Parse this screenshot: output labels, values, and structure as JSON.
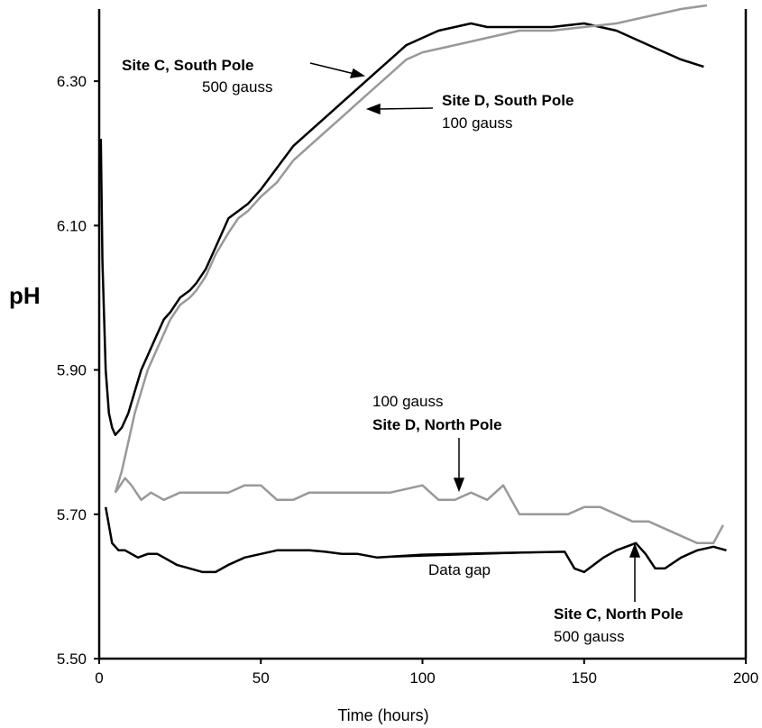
{
  "chart_data": {
    "type": "line",
    "title": "",
    "xlabel": "Time (hours)",
    "ylabel": "pH",
    "xlim": [
      0,
      200
    ],
    "ylim": [
      5.5,
      6.4
    ],
    "x_ticks": [
      "0",
      "50",
      "100",
      "150",
      "200"
    ],
    "y_ticks": [
      "5.50",
      "5.70",
      "5.90",
      "6.10",
      "6.30"
    ],
    "grid": false,
    "legend": "none",
    "series": [
      {
        "color": "#000000",
        "x": [
          0.5,
          1,
          2,
          3,
          4,
          5,
          7,
          9,
          11,
          13,
          15,
          18,
          20,
          22,
          25,
          28,
          30,
          33,
          36,
          40,
          43,
          46,
          50,
          55,
          60,
          65,
          70,
          75,
          80,
          85,
          90,
          95,
          100,
          105,
          110,
          115,
          120,
          130,
          140,
          150,
          160,
          170,
          180,
          187
        ],
        "y": [
          6.22,
          6.05,
          5.9,
          5.84,
          5.82,
          5.81,
          5.82,
          5.84,
          5.87,
          5.9,
          5.92,
          5.95,
          5.97,
          5.98,
          6.0,
          6.01,
          6.02,
          6.04,
          6.07,
          6.11,
          6.12,
          6.13,
          6.15,
          6.18,
          6.21,
          6.23,
          6.25,
          6.27,
          6.29,
          6.31,
          6.33,
          6.35,
          6.36,
          6.37,
          6.375,
          6.38,
          6.375,
          6.375,
          6.375,
          6.38,
          6.37,
          6.35,
          6.33,
          6.32
        ]
      },
      {
        "color": "#999999",
        "x": [
          5,
          7,
          9,
          11,
          13,
          15,
          18,
          20,
          22,
          25,
          28,
          30,
          33,
          36,
          40,
          43,
          46,
          50,
          55,
          60,
          65,
          70,
          75,
          80,
          85,
          90,
          95,
          100,
          110,
          120,
          130,
          140,
          150,
          160,
          170,
          180,
          188
        ],
        "y": [
          5.73,
          5.76,
          5.8,
          5.84,
          5.87,
          5.9,
          5.93,
          5.95,
          5.97,
          5.99,
          6.0,
          6.01,
          6.03,
          6.06,
          6.09,
          6.11,
          6.12,
          6.14,
          6.16,
          6.19,
          6.21,
          6.23,
          6.25,
          6.27,
          6.29,
          6.31,
          6.33,
          6.34,
          6.35,
          6.36,
          6.37,
          6.37,
          6.375,
          6.38,
          6.39,
          6.4,
          6.405
        ]
      },
      {
        "color": "#999999",
        "x": [
          5,
          8,
          10,
          13,
          16,
          20,
          25,
          30,
          35,
          40,
          45,
          50,
          55,
          60,
          65,
          70,
          75,
          80,
          85,
          90,
          95,
          100,
          105,
          110,
          115,
          120,
          125,
          130,
          135,
          140,
          145,
          150,
          155,
          160,
          165,
          170,
          175,
          180,
          185,
          190,
          193
        ],
        "y": [
          5.73,
          5.75,
          5.74,
          5.72,
          5.73,
          5.72,
          5.73,
          5.73,
          5.73,
          5.73,
          5.74,
          5.74,
          5.72,
          5.72,
          5.73,
          5.73,
          5.73,
          5.73,
          5.73,
          5.73,
          5.735,
          5.74,
          5.72,
          5.72,
          5.73,
          5.72,
          5.74,
          5.7,
          5.7,
          5.7,
          5.7,
          5.71,
          5.71,
          5.7,
          5.69,
          5.69,
          5.68,
          5.67,
          5.66,
          5.66,
          5.685
        ]
      },
      {
        "color": "#000000",
        "x": [
          2,
          4,
          6,
          8,
          10,
          12,
          15,
          18,
          20,
          24,
          28,
          32,
          36,
          40,
          45,
          50,
          55,
          60,
          65,
          70,
          75,
          80,
          86,
          100,
          120,
          144,
          147,
          150,
          153,
          156,
          160,
          163,
          166,
          169,
          172,
          175,
          180,
          185,
          190,
          194
        ],
        "y": [
          5.71,
          5.66,
          5.65,
          5.65,
          5.645,
          5.64,
          5.645,
          5.645,
          5.64,
          5.63,
          5.625,
          5.62,
          5.62,
          5.63,
          5.64,
          5.645,
          5.65,
          5.65,
          5.65,
          5.648,
          5.645,
          5.645,
          5.64,
          5.644,
          5.646,
          5.648,
          5.625,
          5.62,
          5.63,
          5.64,
          5.65,
          5.655,
          5.66,
          5.645,
          5.625,
          5.625,
          5.64,
          5.65,
          5.655,
          5.65
        ]
      }
    ],
    "annotations": [
      {
        "lines": [
          "Site C, South Pole",
          "500 gauss"
        ]
      },
      {
        "lines": [
          "Site D, South Pole",
          "100 gauss"
        ]
      },
      {
        "lines": [
          "100 gauss",
          "Site D, North Pole"
        ]
      },
      {
        "lines": [
          "Data gap"
        ]
      },
      {
        "lines": [
          "Site C, North Pole",
          "500 gauss"
        ]
      }
    ]
  }
}
